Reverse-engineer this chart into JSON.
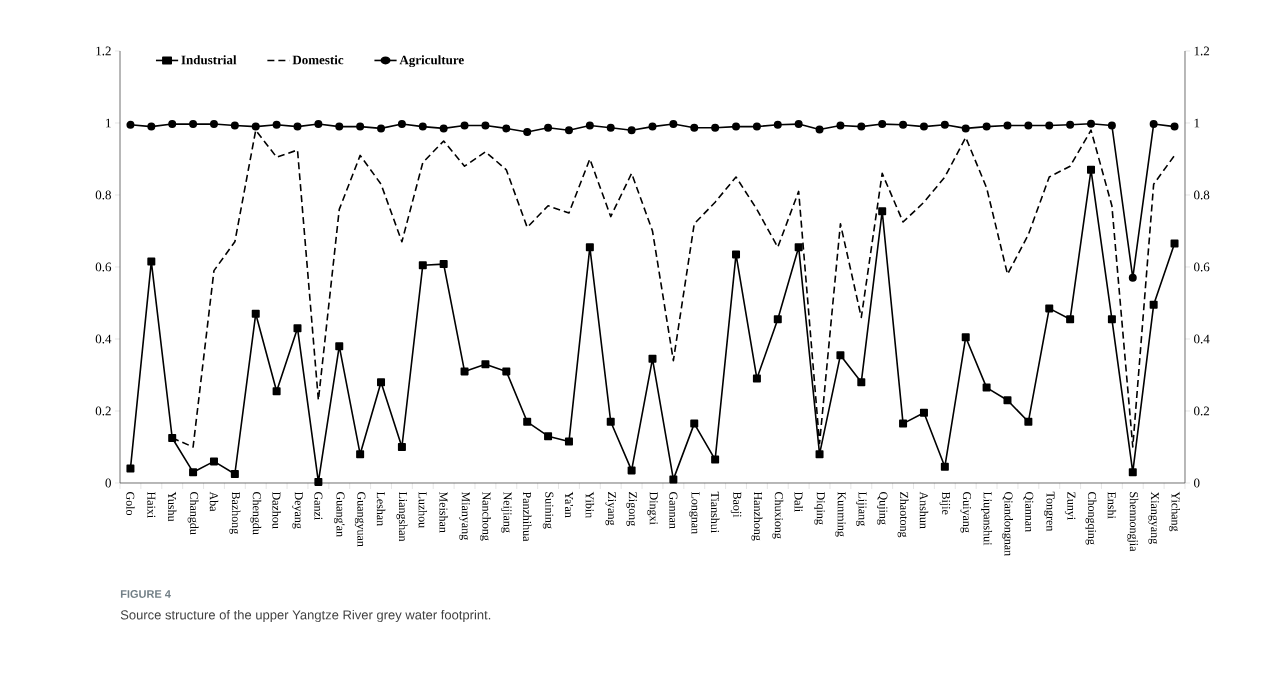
{
  "chart_data": {
    "type": "line",
    "title": "FIGURE 4",
    "subtitle": "Source structure of the upper Yangtze River grey water footprint.",
    "categories": [
      "Golo",
      "Haixi",
      "Yushu",
      "Changdu",
      "Aba",
      "Bazhong",
      "Chengdu",
      "Dazhou",
      "Deyang",
      "Ganzi",
      "Guang'an",
      "Guangyuan",
      "Leshan",
      "Liangshan",
      "Luzhou",
      "Meishan",
      "Mianyang",
      "Nanchong",
      "Neijiang",
      "Panzhihua",
      "Suining",
      "Ya'an",
      "Yibin",
      "Ziyang",
      "Zigong",
      "Dingxi",
      "Gannan",
      "Longnan",
      "Tianshui",
      "Baoji",
      "Hanzhong",
      "Chuxiong",
      "Dali",
      "Diqing",
      "Kunming",
      "Lijiang",
      "Qujing",
      "Zhaotong",
      "Anshun",
      "Bijie",
      "Guiyang",
      "Liupanshui",
      "Qiandongnan",
      "Qiannan",
      "Tongren",
      "Zunyi",
      "Chongqing",
      "Enshi",
      "Shennongjia",
      "Xiangyang",
      "Yichang"
    ],
    "series": [
      {
        "name": "Industrial",
        "color": "#000000",
        "marker": "square",
        "line_style": "solid",
        "values": [
          0.04,
          0.615,
          0.125,
          0.03,
          0.06,
          0.025,
          0.47,
          0.255,
          0.43,
          0.003,
          0.38,
          0.08,
          0.28,
          0.1,
          0.605,
          0.608,
          0.31,
          0.33,
          0.31,
          0.17,
          0.13,
          0.115,
          0.655,
          0.17,
          0.035,
          0.345,
          0.01,
          0.165,
          0.065,
          0.635,
          0.29,
          0.455,
          0.655,
          0.08,
          0.355,
          0.28,
          0.755,
          0.165,
          0.195,
          0.045,
          0.405,
          0.265,
          0.23,
          0.17,
          0.485,
          0.455,
          0.87,
          0.455,
          0.03,
          0.495,
          0.665
        ]
      },
      {
        "name": "Domestic",
        "color": "#000000",
        "marker": "none",
        "line_style": "dashed",
        "values": [
          null,
          null,
          0.125,
          0.1,
          0.59,
          0.67,
          0.98,
          0.905,
          0.925,
          0.23,
          0.76,
          0.91,
          0.83,
          0.67,
          0.89,
          0.95,
          0.88,
          0.92,
          0.87,
          0.71,
          0.77,
          0.75,
          0.9,
          0.74,
          0.86,
          0.7,
          0.34,
          0.72,
          0.78,
          0.85,
          0.76,
          0.655,
          0.81,
          0.11,
          0.72,
          0.46,
          0.86,
          0.725,
          0.78,
          0.85,
          0.96,
          0.82,
          0.58,
          0.69,
          0.85,
          0.88,
          0.98,
          0.77,
          0.1,
          0.83,
          0.91
        ]
      },
      {
        "name": "Agriculture",
        "color": "#000000",
        "marker": "circle",
        "line_style": "solid",
        "values": [
          0.995,
          0.99,
          0.997,
          0.997,
          0.997,
          0.993,
          0.99,
          0.995,
          0.99,
          0.997,
          0.99,
          0.99,
          0.985,
          0.997,
          0.99,
          0.985,
          0.993,
          0.993,
          0.985,
          0.975,
          0.987,
          0.98,
          0.993,
          0.987,
          0.98,
          0.99,
          0.997,
          0.987,
          0.987,
          0.99,
          0.99,
          0.995,
          0.997,
          0.982,
          0.993,
          0.99,
          0.997,
          0.995,
          0.99,
          0.995,
          0.985,
          0.99,
          0.993,
          0.993,
          0.993,
          0.995,
          0.998,
          0.993,
          0.57,
          0.997,
          0.99
        ]
      }
    ],
    "ylim": [
      0,
      1.2
    ],
    "yticks": [
      0,
      0.2,
      0.4,
      0.6,
      0.8,
      1,
      1.2
    ],
    "y2lim": [
      0,
      1.2
    ],
    "y2ticks": [
      0,
      0.2,
      0.4,
      0.6,
      0.8,
      1,
      1.2
    ],
    "grid": false,
    "legend": "top left"
  }
}
